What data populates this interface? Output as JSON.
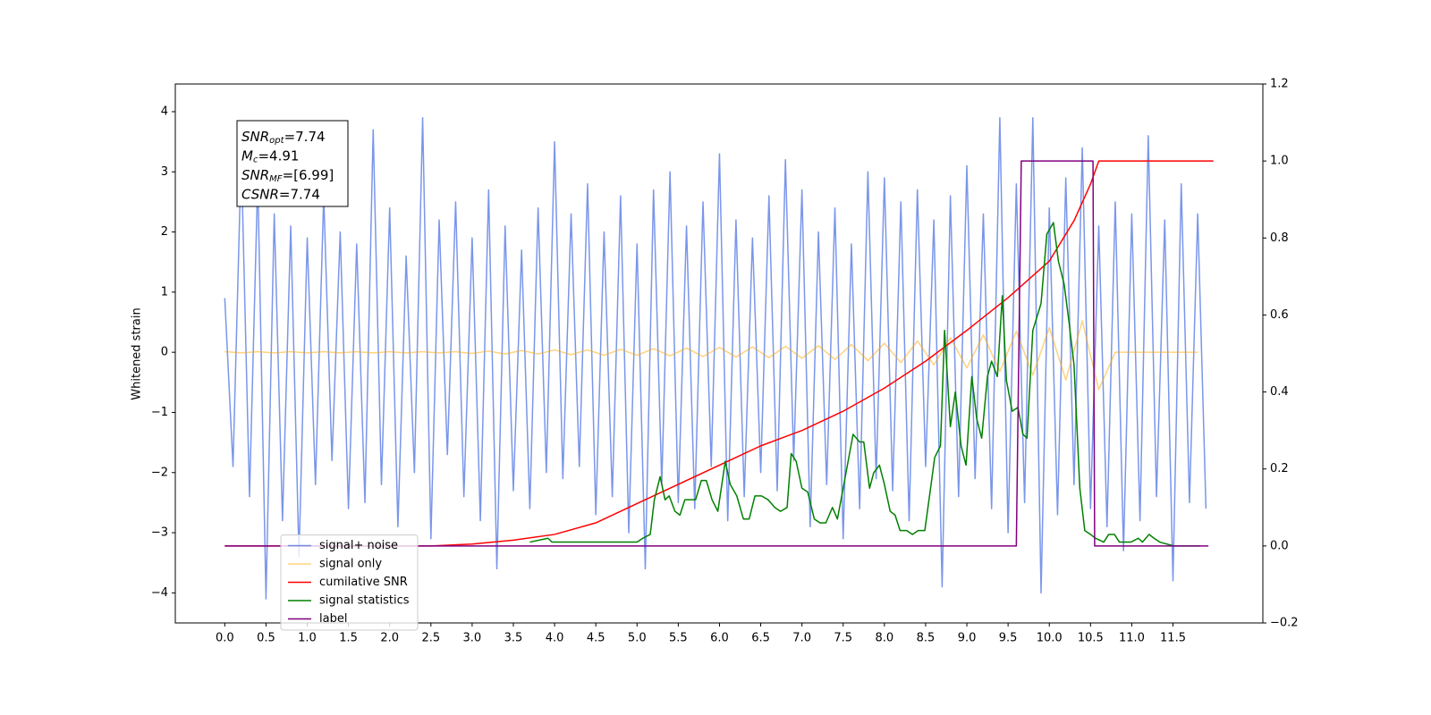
{
  "chart_data": {
    "type": "line",
    "ylabel": "Whitened strain",
    "xlim": [
      -0.6,
      12.59
    ],
    "ylim": [
      -4.5,
      4.46
    ],
    "y2lim": [
      -0.2,
      1.2
    ],
    "xticks": [
      {
        "value": 0,
        "label": "0.0"
      },
      0.5,
      {
        "value": 1,
        "label": "1.0"
      },
      1.5,
      {
        "value": 2,
        "label": "2.0"
      },
      2.5,
      {
        "value": 3,
        "label": "3.0"
      },
      3.5,
      {
        "value": 4,
        "label": "4.0"
      },
      4.5,
      {
        "value": 5,
        "label": "5.0"
      },
      5.5,
      {
        "value": 6,
        "label": "6.0"
      },
      6.5,
      {
        "value": 7,
        "label": "7.0"
      },
      7.5,
      {
        "value": 8,
        "label": "8.0"
      },
      8.5,
      {
        "value": 9,
        "label": "9.0"
      },
      9.5,
      {
        "value": 10,
        "label": "10.0"
      },
      10.5,
      {
        "value": 11,
        "label": "11.0"
      },
      11.5
    ],
    "yticks": [
      {
        "value": -4,
        "label": "−4"
      },
      {
        "value": -3,
        "label": "−3"
      },
      {
        "value": -2,
        "label": "−2"
      },
      {
        "value": -1,
        "label": "−1"
      },
      0,
      1,
      2,
      3,
      4
    ],
    "y2ticks": [
      {
        "value": -0.2,
        "label": "−0.2"
      },
      {
        "value": 0,
        "label": "0.0"
      },
      0.2,
      0.4,
      0.6,
      0.8,
      {
        "value": 1,
        "label": "1.0"
      },
      1.2
    ],
    "legend": "lower left",
    "annotations": [
      {
        "text": "SNR",
        "sub": "opt",
        "value": "=7.74"
      },
      {
        "text": "M",
        "sub": "c",
        "value": "=4.91"
      },
      {
        "text": "SNR",
        "sub": "MF",
        "value": "=[6.99]"
      },
      {
        "text": "CSNR",
        "value": "=7.74"
      }
    ],
    "series": [
      {
        "name": "signal+ noise",
        "color": "#4169e1",
        "alpha": 0.7,
        "x": [
          0,
          0.1,
          0.2,
          0.3,
          0.4,
          0.5,
          0.6,
          0.7,
          0.8,
          0.9,
          1,
          1.1,
          1.2,
          1.3,
          1.4,
          1.5,
          1.6,
          1.7,
          1.8,
          1.9,
          2,
          2.1,
          2.2,
          2.3,
          2.4,
          2.5,
          2.6,
          2.7,
          2.8,
          2.9,
          3,
          3.1,
          3.2,
          3.3,
          3.4,
          3.5,
          3.6,
          3.7,
          3.8,
          3.9,
          4,
          4.1,
          4.2,
          4.3,
          4.4,
          4.5,
          4.6,
          4.7,
          4.8,
          4.9,
          5,
          5.1,
          5.2,
          5.3,
          5.4,
          5.5,
          5.6,
          5.7,
          5.8,
          5.9,
          6,
          6.1,
          6.2,
          6.3,
          6.4,
          6.5,
          6.6,
          6.7,
          6.8,
          6.9,
          7,
          7.1,
          7.2,
          7.3,
          7.4,
          7.5,
          7.6,
          7.7,
          7.8,
          7.9,
          8,
          8.1,
          8.2,
          8.3,
          8.4,
          8.5,
          8.6,
          8.7,
          8.8,
          8.9,
          9,
          9.1,
          9.2,
          9.3,
          9.4,
          9.5,
          9.6,
          9.7,
          9.8,
          9.9,
          10,
          10.1,
          10.2,
          10.3,
          10.4,
          10.5,
          10.6,
          10.7,
          10.8,
          10.9,
          11,
          11.1,
          11.2,
          11.3,
          11.4,
          11.5,
          11.6,
          11.7,
          11.8,
          11.9
        ],
        "values": [
          0.9,
          -1.9,
          3.3,
          -2.4,
          2.9,
          -4.1,
          2.3,
          -2.8,
          2.1,
          -3.4,
          1.9,
          -2.2,
          2.6,
          -1.8,
          2.0,
          -2.6,
          1.8,
          -2.5,
          3.7,
          -2.2,
          2.4,
          -2.9,
          1.6,
          -2.0,
          3.9,
          -3.1,
          2.2,
          -1.7,
          2.5,
          -2.4,
          1.9,
          -2.8,
          2.7,
          -3.6,
          2.1,
          -2.3,
          1.7,
          -2.6,
          2.4,
          -2.0,
          3.5,
          -2.1,
          2.3,
          -1.9,
          2.8,
          -2.7,
          2.0,
          -2.4,
          2.6,
          -3.0,
          1.8,
          -3.6,
          2.7,
          -2.2,
          3.0,
          -2.5,
          2.1,
          -2.6,
          2.5,
          -1.9,
          3.3,
          -2.8,
          2.2,
          -2.4,
          1.9,
          -2.0,
          2.6,
          -2.3,
          3.2,
          -1.8,
          2.7,
          -2.9,
          2.0,
          -2.2,
          2.4,
          -3.1,
          1.8,
          -2.6,
          3.0,
          -2.1,
          2.9,
          -2.3,
          2.5,
          -2.8,
          2.7,
          -1.9,
          2.2,
          -3.9,
          2.6,
          -2.4,
          3.1,
          -2.1,
          2.3,
          -2.6,
          3.9,
          -3.0,
          2.8,
          -2.5,
          3.9,
          -4.0,
          2.4,
          -2.7,
          2.9,
          -2.2,
          3.4,
          -2.6,
          2.1,
          -2.9,
          2.5,
          -3.3,
          2.3,
          -2.8,
          3.6,
          -2.4,
          2.2,
          -3.8,
          2.8,
          -2.5,
          2.3,
          -2.6
        ]
      },
      {
        "name": "signal only",
        "color": "#ffa500",
        "alpha": 0.5,
        "x": [
          0,
          0.2,
          0.4,
          0.6,
          0.8,
          1,
          1.2,
          1.4,
          1.6,
          1.8,
          2,
          2.2,
          2.4,
          2.6,
          2.8,
          3,
          3.2,
          3.4,
          3.6,
          3.8,
          4,
          4.2,
          4.4,
          4.6,
          4.8,
          5,
          5.2,
          5.4,
          5.6,
          5.8,
          6,
          6.2,
          6.4,
          6.6,
          6.8,
          7,
          7.2,
          7.4,
          7.6,
          7.8,
          8,
          8.2,
          8.4,
          8.6,
          8.8,
          9,
          9.2,
          9.4,
          9.6,
          9.8,
          10,
          10.2,
          10.4,
          10.6,
          10.8,
          11,
          11.2,
          11.4,
          11.6,
          11.8
        ],
        "values": [
          0.01,
          -0.01,
          0.01,
          -0.01,
          0.01,
          -0.01,
          0.01,
          -0.01,
          0.01,
          -0.01,
          0.01,
          -0.01,
          0.01,
          -0.01,
          0.01,
          -0.02,
          0.02,
          -0.03,
          0.03,
          -0.03,
          0.04,
          -0.04,
          0.04,
          -0.05,
          0.05,
          -0.05,
          0.06,
          -0.06,
          0.07,
          -0.07,
          0.08,
          -0.08,
          0.09,
          -0.09,
          0.1,
          -0.1,
          0.11,
          -0.12,
          0.13,
          -0.14,
          0.15,
          -0.17,
          0.19,
          -0.21,
          0.24,
          -0.26,
          0.29,
          -0.32,
          0.35,
          -0.38,
          0.41,
          -0.46,
          0.52,
          -0.62,
          0,
          0,
          0,
          0,
          0,
          0
        ]
      },
      {
        "name": "cumilative SNR",
        "color": "red",
        "axis": "y2",
        "x": [
          0,
          2.5,
          3,
          3.5,
          4,
          4.5,
          5,
          5.5,
          6,
          6.5,
          7,
          7.5,
          8,
          8.5,
          9,
          9.5,
          10,
          10.3,
          10.5,
          10.6,
          11.99
        ],
        "values": [
          0,
          0,
          0.005,
          0.015,
          0.03,
          0.06,
          0.11,
          0.16,
          0.21,
          0.26,
          0.3,
          0.35,
          0.41,
          0.48,
          0.56,
          0.645,
          0.74,
          0.845,
          0.94,
          1,
          1
        ]
      },
      {
        "name": "signal statistics",
        "color": "green",
        "axis": "y2",
        "x": [
          3.7,
          3.92,
          3.97,
          4.08,
          4.62,
          4.73,
          4.84,
          5.0,
          5.07,
          5.16,
          5.21,
          5.28,
          5.34,
          5.39,
          5.46,
          5.52,
          5.58,
          5.64,
          5.71,
          5.78,
          5.84,
          5.91,
          5.98,
          6.07,
          6.13,
          6.21,
          6.29,
          6.36,
          6.43,
          6.51,
          6.59,
          6.67,
          6.74,
          6.82,
          6.87,
          6.93,
          7.0,
          7.07,
          7.15,
          7.22,
          7.29,
          7.37,
          7.43,
          7.5,
          7.56,
          7.62,
          7.7,
          7.75,
          7.82,
          7.87,
          7.94,
          8.0,
          8.07,
          8.13,
          8.19,
          8.27,
          8.34,
          8.41,
          8.49,
          8.56,
          8.61,
          8.68,
          8.73,
          8.8,
          8.86,
          8.93,
          8.99,
          9.06,
          9.12,
          9.18,
          9.25,
          9.3,
          9.37,
          9.43,
          9.48,
          9.55,
          9.62,
          9.68,
          9.73,
          9.8,
          9.9,
          9.97,
          10.05,
          10.11,
          10.18,
          10.24,
          10.3,
          10.37,
          10.43,
          10.5,
          10.56,
          10.66,
          10.72,
          10.79,
          10.85,
          10.92,
          10.99,
          11.08,
          11.13,
          11.21,
          11.27,
          11.34,
          11.51,
          11.83
        ],
        "values": [
          0.01,
          0.02,
          0.01,
          0.01,
          0.01,
          0.01,
          0.01,
          0.01,
          0.02,
          0.03,
          0.12,
          0.18,
          0.12,
          0.13,
          0.09,
          0.08,
          0.12,
          0.12,
          0.12,
          0.17,
          0.17,
          0.12,
          0.09,
          0.22,
          0.16,
          0.13,
          0.07,
          0.07,
          0.13,
          0.13,
          0.12,
          0.1,
          0.09,
          0.1,
          0.24,
          0.22,
          0.15,
          0.14,
          0.07,
          0.06,
          0.06,
          0.1,
          0.07,
          0.15,
          0.22,
          0.29,
          0.27,
          0.27,
          0.15,
          0.19,
          0.21,
          0.16,
          0.09,
          0.08,
          0.04,
          0.04,
          0.03,
          0.04,
          0.04,
          0.15,
          0.23,
          0.26,
          0.56,
          0.31,
          0.4,
          0.26,
          0.21,
          0.44,
          0.33,
          0.28,
          0.44,
          0.48,
          0.44,
          0.65,
          0.43,
          0.35,
          0.36,
          0.29,
          0.28,
          0.56,
          0.63,
          0.81,
          0.84,
          0.74,
          0.68,
          0.58,
          0.47,
          0.15,
          0.04,
          0.03,
          0.02,
          0.01,
          0.03,
          0.03,
          0.01,
          0.01,
          0.01,
          0.02,
          0.01,
          0.03,
          0.02,
          0.01,
          0,
          0
        ]
      },
      {
        "name": "label",
        "color": "purple",
        "axis": "y2",
        "x": [
          0,
          9.6,
          9.66,
          10.53,
          10.55,
          11.93
        ],
        "values": [
          0,
          0,
          1,
          1,
          0,
          0
        ]
      }
    ]
  }
}
